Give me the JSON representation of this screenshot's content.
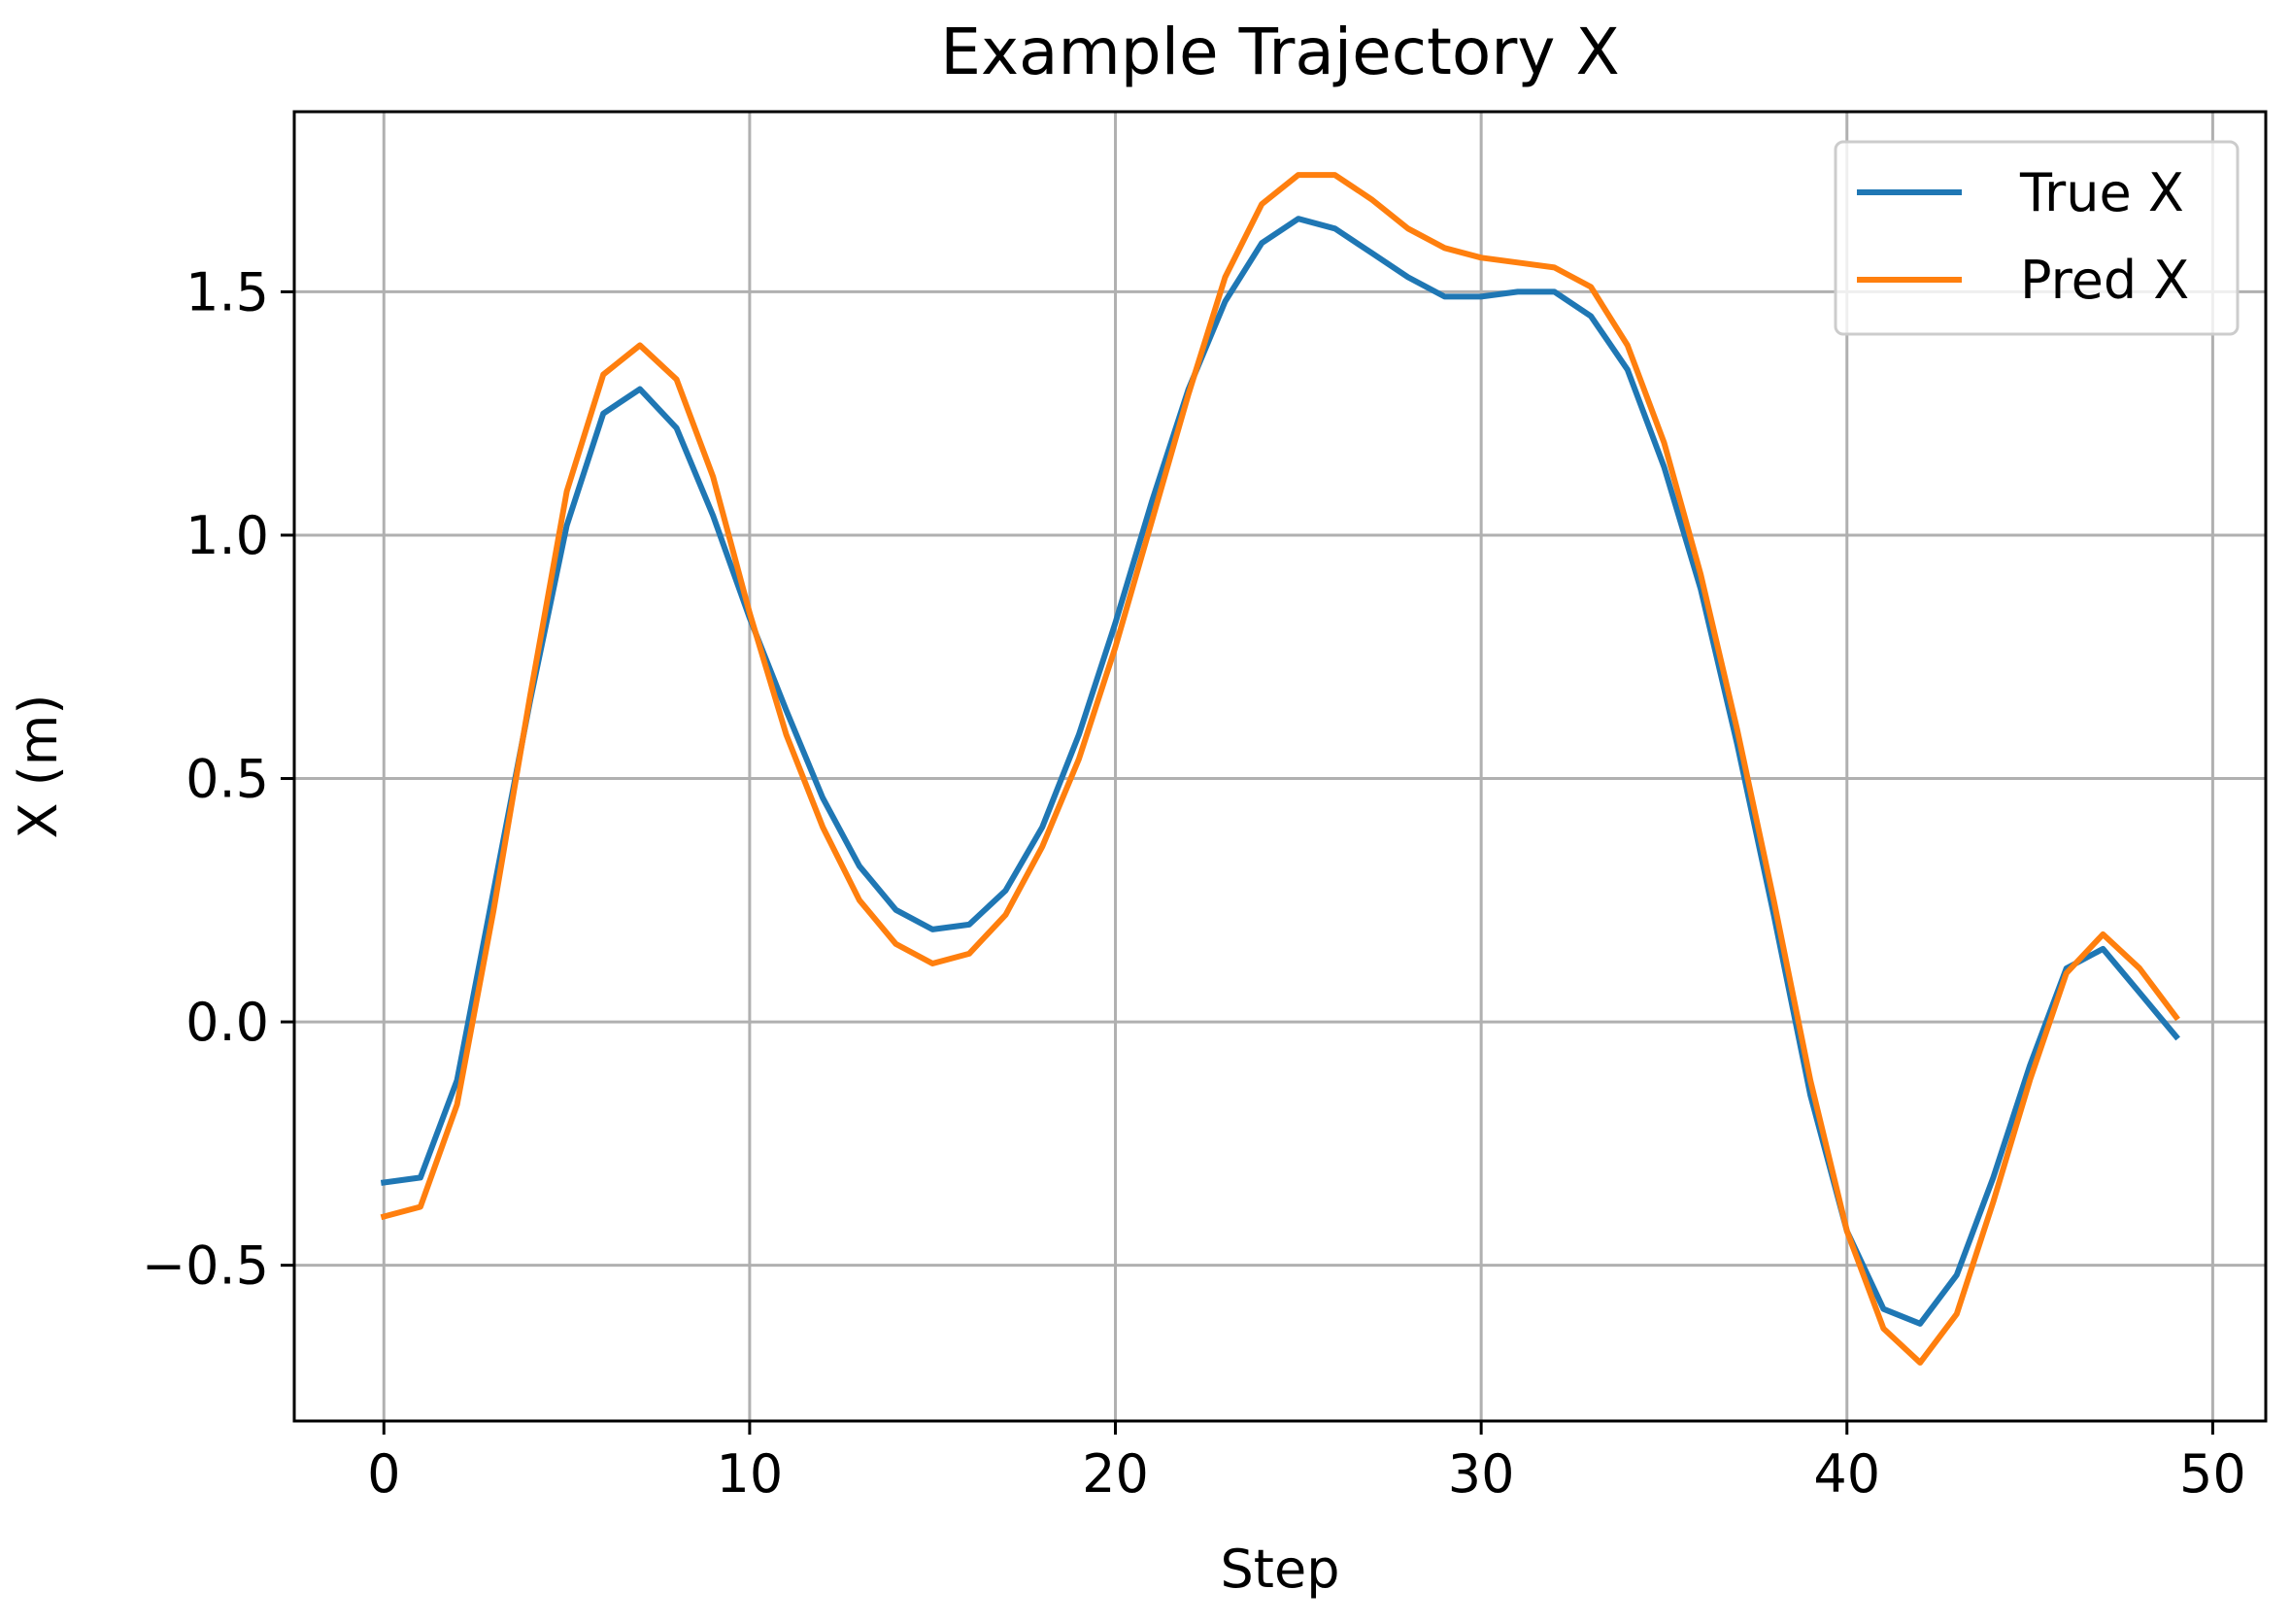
{
  "chart_data": {
    "type": "line",
    "title": "Example Trajectory X",
    "xlabel": "Step",
    "ylabel": "X (m)",
    "xlim": [
      -2.45,
      51.45
    ],
    "ylim": [
      -0.82,
      1.87
    ],
    "xticks": [
      0,
      10,
      20,
      30,
      40,
      50
    ],
    "xtick_labels": [
      "0",
      "10",
      "20",
      "30",
      "40",
      "50"
    ],
    "yticks": [
      -0.5,
      0.0,
      0.5,
      1.0,
      1.5
    ],
    "ytick_labels": [
      "−0.5",
      "0.0",
      "0.5",
      "1.0",
      "1.5"
    ],
    "grid": true,
    "legend": {
      "placement": "top-right"
    },
    "series": [
      {
        "name": "True X",
        "color": "#1f77b4",
        "x": [
          0,
          1,
          2,
          3,
          4,
          5,
          6,
          7,
          8,
          9,
          10,
          11,
          12,
          13,
          14,
          15,
          16,
          17,
          18,
          19,
          20,
          21,
          22,
          23,
          24,
          25,
          26,
          27,
          28,
          29,
          30,
          31,
          32,
          33,
          34,
          35,
          36,
          37,
          38,
          39,
          40,
          41,
          42,
          43,
          44,
          45,
          46,
          47,
          48,
          49
        ],
        "values": [
          -0.33,
          -0.32,
          -0.12,
          0.27,
          0.66,
          1.02,
          1.25,
          1.3,
          1.22,
          1.04,
          0.83,
          0.64,
          0.46,
          0.32,
          0.23,
          0.19,
          0.2,
          0.27,
          0.4,
          0.59,
          0.82,
          1.07,
          1.3,
          1.48,
          1.6,
          1.65,
          1.63,
          1.58,
          1.53,
          1.49,
          1.49,
          1.5,
          1.5,
          1.45,
          1.34,
          1.14,
          0.89,
          0.57,
          0.22,
          -0.15,
          -0.43,
          -0.59,
          -0.62,
          -0.52,
          -0.32,
          -0.09,
          0.11,
          0.15,
          0.06,
          -0.03
        ]
      },
      {
        "name": "Pred X",
        "color": "#ff7f0e",
        "x": [
          0,
          1,
          2,
          3,
          4,
          5,
          6,
          7,
          8,
          9,
          10,
          11,
          12,
          13,
          14,
          15,
          16,
          17,
          18,
          19,
          20,
          21,
          22,
          23,
          24,
          25,
          26,
          27,
          28,
          29,
          30,
          31,
          32,
          33,
          34,
          35,
          36,
          37,
          38,
          39,
          40,
          41,
          42,
          43,
          44,
          45,
          46,
          47,
          48,
          49
        ],
        "values": [
          -0.4,
          -0.38,
          -0.17,
          0.23,
          0.67,
          1.09,
          1.33,
          1.39,
          1.32,
          1.12,
          0.84,
          0.59,
          0.4,
          0.25,
          0.16,
          0.12,
          0.14,
          0.22,
          0.36,
          0.54,
          0.77,
          1.03,
          1.29,
          1.53,
          1.68,
          1.74,
          1.74,
          1.69,
          1.63,
          1.59,
          1.57,
          1.56,
          1.55,
          1.51,
          1.39,
          1.19,
          0.92,
          0.6,
          0.25,
          -0.12,
          -0.43,
          -0.63,
          -0.7,
          -0.6,
          -0.37,
          -0.12,
          0.1,
          0.18,
          0.11,
          0.01
        ]
      }
    ]
  }
}
